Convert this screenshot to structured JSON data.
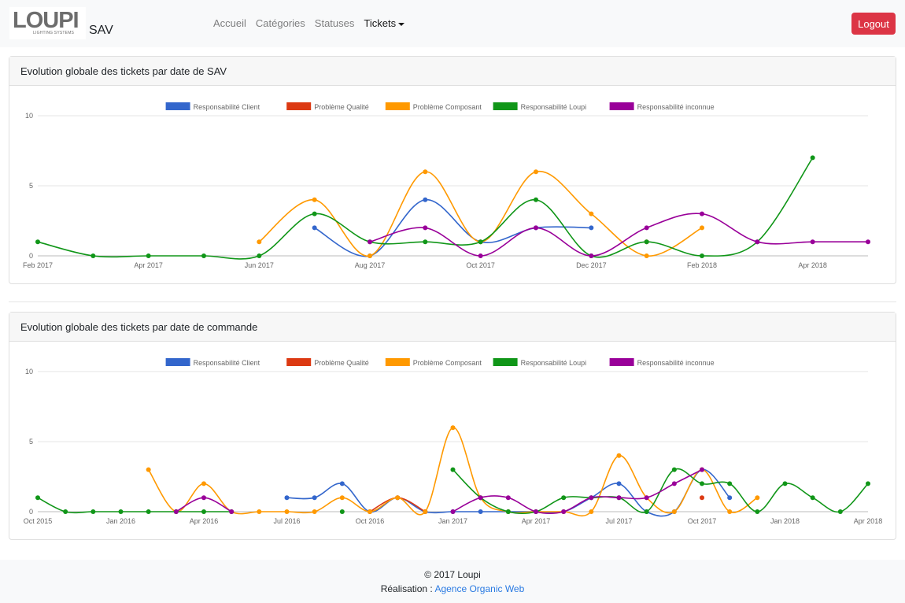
{
  "brand": {
    "logo_text": "LOUPI",
    "logo_subtext": "LIGHTING SYSTEMS",
    "app_name": "SAV"
  },
  "nav": {
    "items": [
      "Accueil",
      "Catégories",
      "Statuses"
    ],
    "dropdown_label": "Tickets"
  },
  "logout_label": "Logout",
  "colors": {
    "Responsabilité Client": "#3366cc",
    "Problème Qualité": "#dc3912",
    "Problème Composant": "#ff9900",
    "Responsabilité Loupi": "#109618",
    "Responsabilité inconnue": "#990099"
  },
  "cards": [
    {
      "title": "Evolution globale des tickets par date de SAV"
    },
    {
      "title": "Evolution globale des tickets par date de commande"
    }
  ],
  "chart_data": [
    {
      "type": "line",
      "title": "Evolution globale des tickets par date de SAV",
      "x": [
        "2017-02",
        "2017-03",
        "2017-04",
        "2017-05",
        "2017-06",
        "2017-07",
        "2017-08",
        "2017-09",
        "2017-10",
        "2017-11",
        "2017-12",
        "2018-01",
        "2018-02",
        "2018-03",
        "2018-04",
        "2018-05"
      ],
      "x_ticks": [
        "Feb 2017",
        "Apr 2017",
        "Jun 2017",
        "Aug 2017",
        "Oct 2017",
        "Dec 2017",
        "Feb 2018",
        "Apr 2018"
      ],
      "y_ticks": [
        0,
        5,
        10
      ],
      "ylim": [
        0,
        10
      ],
      "legend_position": "top",
      "grid": true,
      "series": [
        {
          "name": "Responsabilité Client",
          "values": [
            null,
            null,
            null,
            null,
            null,
            2,
            0,
            4,
            1,
            2,
            2,
            null,
            null,
            null,
            null,
            null
          ]
        },
        {
          "name": "Problème Qualité",
          "values": [
            null,
            null,
            null,
            null,
            null,
            null,
            null,
            null,
            null,
            null,
            null,
            1,
            null,
            null,
            null,
            null
          ]
        },
        {
          "name": "Problème Composant",
          "values": [
            null,
            null,
            null,
            null,
            1,
            4,
            0,
            6,
            1,
            6,
            3,
            0,
            2,
            null,
            null,
            null
          ]
        },
        {
          "name": "Responsabilité Loupi",
          "values": [
            1,
            0,
            0,
            0,
            0,
            3,
            1,
            1,
            1,
            4,
            0,
            1,
            0,
            1,
            7,
            null
          ]
        },
        {
          "name": "Responsabilité inconnue",
          "values": [
            null,
            null,
            null,
            null,
            null,
            null,
            1,
            2,
            0,
            2,
            0,
            2,
            3,
            1,
            1,
            1
          ]
        }
      ]
    },
    {
      "type": "line",
      "title": "Evolution globale des tickets par date de commande",
      "x": [
        "2015-10",
        "2015-11",
        "2015-12",
        "2016-01",
        "2016-02",
        "2016-03",
        "2016-04",
        "2016-05",
        "2016-06",
        "2016-07",
        "2016-08",
        "2016-09",
        "2016-10",
        "2016-11",
        "2016-12",
        "2017-01",
        "2017-02",
        "2017-03",
        "2017-04",
        "2017-05",
        "2017-06",
        "2017-07",
        "2017-08",
        "2017-09",
        "2017-10",
        "2017-11",
        "2017-12",
        "2018-01",
        "2018-02",
        "2018-03",
        "2018-04"
      ],
      "x_ticks": [
        "Oct 2015",
        "Jan 2016",
        "Apr 2016",
        "Jul 2016",
        "Oct 2016",
        "Jan 2017",
        "Apr 2017",
        "Jul 2017",
        "Oct 2017",
        "Jan 2018",
        "Apr 2018"
      ],
      "y_ticks": [
        0,
        5,
        10
      ],
      "ylim": [
        0,
        10
      ],
      "legend_position": "top",
      "grid": true,
      "series": [
        {
          "name": "Responsabilité Client",
          "values": [
            null,
            null,
            null,
            null,
            null,
            null,
            null,
            null,
            null,
            1,
            1,
            2,
            0,
            1,
            0,
            0,
            0,
            0,
            0,
            0,
            1,
            2,
            0,
            0,
            3,
            1,
            null,
            null,
            null,
            null,
            null
          ]
        },
        {
          "name": "Problème Qualité",
          "values": [
            null,
            null,
            null,
            null,
            null,
            null,
            null,
            null,
            null,
            null,
            null,
            null,
            0,
            1,
            0,
            null,
            null,
            null,
            null,
            null,
            null,
            null,
            null,
            null,
            1,
            null,
            null,
            null,
            null,
            null,
            null
          ]
        },
        {
          "name": "Problème Composant",
          "values": [
            null,
            null,
            null,
            null,
            3,
            0,
            2,
            0,
            0,
            0,
            0,
            1,
            0,
            1,
            0,
            6,
            1,
            0,
            0,
            0,
            0,
            4,
            1,
            0,
            3,
            0,
            1,
            null,
            null,
            null,
            null
          ]
        },
        {
          "name": "Responsabilité Loupi",
          "values": [
            1,
            0,
            0,
            0,
            0,
            0,
            0,
            0,
            null,
            null,
            null,
            0,
            null,
            null,
            null,
            3,
            1,
            0,
            0,
            1,
            1,
            1,
            0,
            3,
            2,
            2,
            0,
            2,
            1,
            0,
            2
          ]
        },
        {
          "name": "Responsabilité inconnue",
          "values": [
            null,
            null,
            null,
            null,
            null,
            0,
            1,
            0,
            null,
            null,
            null,
            null,
            null,
            null,
            null,
            0,
            1,
            1,
            0,
            0,
            1,
            1,
            1,
            2,
            3,
            null,
            null,
            null,
            null,
            null,
            null
          ]
        }
      ]
    }
  ],
  "footer": {
    "copyright": "© 2017 Loupi",
    "credit_prefix": "Réalisation : ",
    "credit_link": "Agence Organic Web"
  }
}
